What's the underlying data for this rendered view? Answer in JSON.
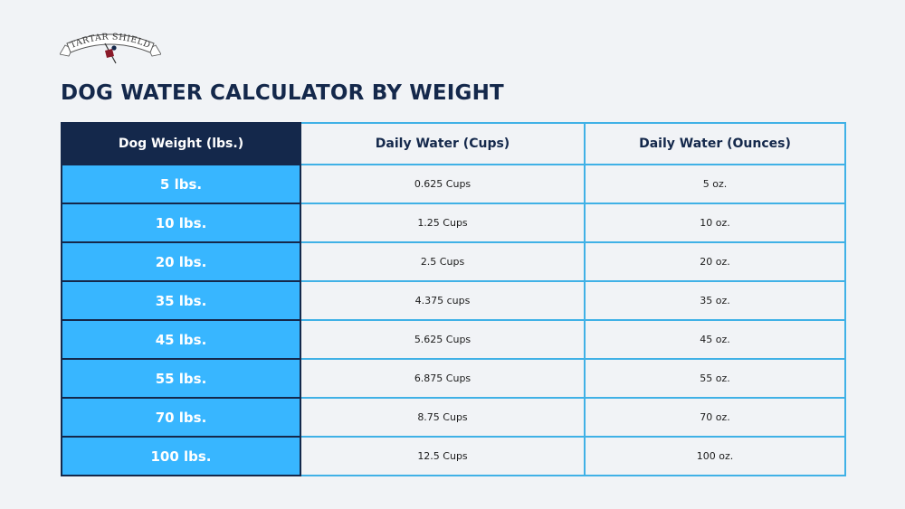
{
  "logo": {
    "brand_text": "TARTAR SHIELD",
    "colors": {
      "banner": "#ffffff",
      "outline": "#555555",
      "accent_red": "#8b1a2a",
      "accent_navy": "#14284b"
    }
  },
  "page": {
    "title": "DOG WATER CALCULATOR BY WEIGHT"
  },
  "table": {
    "headers": [
      "Dog Weight (lbs.)",
      "Daily Water (Cups)",
      "Daily Water (Ounces)"
    ],
    "rows": [
      {
        "weight": "5 lbs.",
        "cups": "0.625 Cups",
        "ounces": "5 oz."
      },
      {
        "weight": "10 lbs.",
        "cups": "1.25 Cups",
        "ounces": "10 oz."
      },
      {
        "weight": "20 lbs.",
        "cups": "2.5 Cups",
        "ounces": "20 oz."
      },
      {
        "weight": "35 lbs.",
        "cups": "4.375 cups",
        "ounces": "35 oz."
      },
      {
        "weight": "45 lbs.",
        "cups": "5.625 Cups",
        "ounces": "45 oz."
      },
      {
        "weight": "55 lbs.",
        "cups": "6.875 Cups",
        "ounces": "55 oz."
      },
      {
        "weight": "70 lbs.",
        "cups": "8.75 Cups",
        "ounces": "70 oz."
      },
      {
        "weight": "100 lbs.",
        "cups": "12.5 Cups",
        "ounces": "100 oz."
      }
    ]
  },
  "colors": {
    "background": "#f1f3f6",
    "navy": "#14284b",
    "weight_column": "#38b6ff",
    "cell_border": "#40b1e6"
  }
}
